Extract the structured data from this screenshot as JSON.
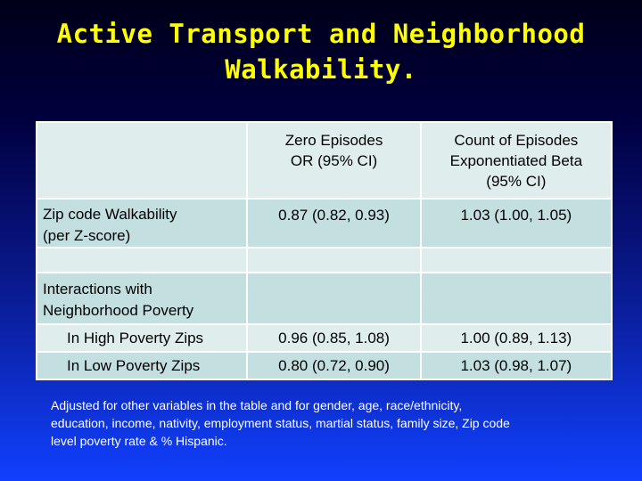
{
  "title": {
    "line1": "Active Transport and Neighborhood",
    "line2": "Walkability."
  },
  "table": {
    "header": {
      "col1": "",
      "col2_line1": "Zero Episodes",
      "col2_line2": "OR (95% CI)",
      "col3_line1": "Count of Episodes",
      "col3_line2": "Exponentiated Beta",
      "col3_line3": "(95% CI)"
    },
    "walkability": {
      "label_line1": "Zip code Walkability",
      "label_line2": "(per Z-score)",
      "zero_episodes": "0.87 (0.82, 0.93)",
      "count_episodes": "1.03 (1.00, 1.05)"
    },
    "interactions": {
      "label_line1": "Interactions with",
      "label_line2": "Neighborhood Poverty"
    },
    "high_poverty": {
      "label": "In High Poverty Zips",
      "zero_episodes": "0.96 (0.85, 1.08)",
      "count_episodes": "1.00 (0.89, 1.13)"
    },
    "low_poverty": {
      "label": "In Low Poverty Zips",
      "zero_episodes": "0.80 (0.72, 0.90)",
      "count_episodes": "1.03 (0.98, 1.07)"
    }
  },
  "footnote": {
    "line1": "Adjusted for other variables in the table and for gender, age, race/ethnicity,",
    "line2": "education, income, nativity, employment status, martial status, family size, Zip code",
    "line3": "level poverty rate & % Hispanic."
  }
}
